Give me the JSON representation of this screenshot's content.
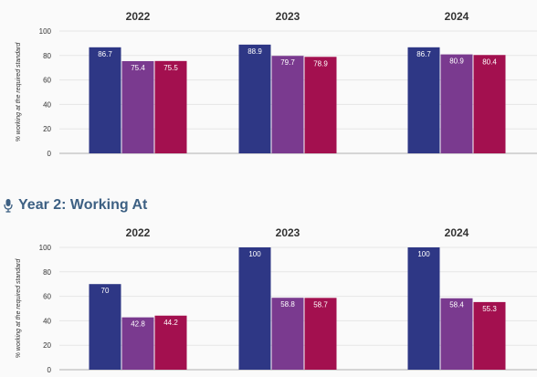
{
  "colors": [
    "#2e3785",
    "#7a3a8f",
    "#a3104f"
  ],
  "section_heading": {
    "title": "Year 2: Working At",
    "icon": "microphone-icon"
  },
  "chart_data": [
    {
      "type": "bar",
      "ylabel": "% working at the required standard",
      "ylim": [
        0,
        100
      ],
      "yticks": [
        0,
        20,
        40,
        60,
        80,
        100
      ],
      "categories": [
        "2022",
        "2023",
        "2024"
      ],
      "series": [
        {
          "values": [
            86.7,
            88.9,
            86.7
          ],
          "labels": [
            "86.7",
            "88.9",
            "86.7"
          ]
        },
        {
          "values": [
            75.4,
            79.7,
            80.9
          ],
          "labels": [
            "75.4",
            "79.7",
            "80.9"
          ]
        },
        {
          "values": [
            75.5,
            78.9,
            80.4
          ],
          "labels": [
            "75.5",
            "78.9",
            "80.4"
          ]
        }
      ],
      "grid": true
    },
    {
      "type": "bar",
      "title": "Year 2: Working At",
      "ylabel": "% working at the required standard",
      "ylim": [
        0,
        100
      ],
      "yticks": [
        0,
        20,
        40,
        60,
        80,
        100
      ],
      "categories": [
        "2022",
        "2023",
        "2024"
      ],
      "series": [
        {
          "values": [
            70,
            100,
            100
          ],
          "labels": [
            "70",
            "100",
            "100"
          ]
        },
        {
          "values": [
            42.8,
            58.8,
            58.4
          ],
          "labels": [
            "42.8",
            "58.8",
            "58.4"
          ]
        },
        {
          "values": [
            44.2,
            58.7,
            55.3
          ],
          "labels": [
            "44.2",
            "58.7",
            "55.3"
          ]
        }
      ],
      "grid": true
    }
  ]
}
